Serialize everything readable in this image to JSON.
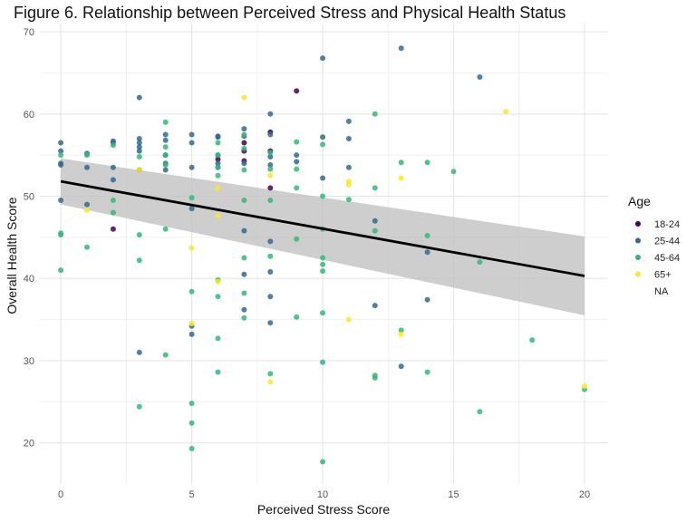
{
  "chart_data": {
    "type": "scatter",
    "title": "Figure 6. Relationship between Perceived Stress and Physical Health Status",
    "xlabel": "Perceived Stress Score",
    "ylabel": "Overall Health Score",
    "xlim": [
      -0.8,
      20.9
    ],
    "ylim": [
      15,
      71
    ],
    "xticks": [
      0,
      5,
      10,
      15,
      20
    ],
    "yticks": [
      20,
      30,
      40,
      50,
      60,
      70
    ],
    "grid": true,
    "legend": {
      "title": "Age",
      "position": "right",
      "entries": [
        {
          "label": "18-24",
          "color": "#440154"
        },
        {
          "label": "25-44",
          "color": "#31688e"
        },
        {
          "label": "45-64",
          "color": "#35b779"
        },
        {
          "label": "65+",
          "color": "#fde725"
        },
        {
          "label": "NA",
          "color": "none"
        }
      ]
    },
    "trend": {
      "type": "linear",
      "x": [
        0,
        20
      ],
      "y": [
        51.8,
        40.3
      ],
      "ci_lower": [
        49.0,
        35.5
      ],
      "ci_upper": [
        54.6,
        45.1
      ],
      "line_color": "#000000",
      "band_color": "#bdbdbd"
    },
    "series": [
      {
        "name": "18-24",
        "color": "#440154",
        "points": [
          [
            2,
            46.0
          ],
          [
            6,
            54.5
          ],
          [
            7,
            54.3
          ],
          [
            7,
            55.5
          ],
          [
            7,
            56.5
          ],
          [
            8,
            51.0
          ],
          [
            8,
            55.5
          ],
          [
            8,
            57.8
          ],
          [
            9,
            62.8
          ]
        ]
      },
      {
        "name": "25-44",
        "color": "#31688e",
        "points": [
          [
            0,
            49.5
          ],
          [
            0,
            53.8
          ],
          [
            0,
            54.0
          ],
          [
            0,
            55.5
          ],
          [
            0,
            56.5
          ],
          [
            1,
            49.0
          ],
          [
            1,
            53.5
          ],
          [
            1,
            55.2
          ],
          [
            2,
            52.0
          ],
          [
            2,
            53.5
          ],
          [
            2,
            56.5
          ],
          [
            2,
            56.7
          ],
          [
            3,
            31.0
          ],
          [
            3,
            53.2
          ],
          [
            3,
            55.5
          ],
          [
            3,
            56.0
          ],
          [
            3,
            56.5
          ],
          [
            3,
            57.0
          ],
          [
            3,
            62.0
          ],
          [
            4,
            53.2
          ],
          [
            4,
            54.0
          ],
          [
            4,
            55.0
          ],
          [
            4,
            56.8
          ],
          [
            4,
            57.5
          ],
          [
            5,
            33.2
          ],
          [
            5,
            34.2
          ],
          [
            5,
            48.5
          ],
          [
            5,
            53.5
          ],
          [
            5,
            56.5
          ],
          [
            5,
            57.5
          ],
          [
            6,
            53.5
          ],
          [
            6,
            54.0
          ],
          [
            6,
            55.0
          ],
          [
            6,
            57.2
          ],
          [
            6,
            57.3
          ],
          [
            7,
            36.2
          ],
          [
            7,
            40.5
          ],
          [
            7,
            45.8
          ],
          [
            7,
            54.0
          ],
          [
            7,
            57.3
          ],
          [
            7,
            58.2
          ],
          [
            8,
            34.6
          ],
          [
            8,
            37.8
          ],
          [
            8,
            40.8
          ],
          [
            8,
            44.5
          ],
          [
            8,
            53.8
          ],
          [
            8,
            54.8
          ],
          [
            8,
            57.5
          ],
          [
            8,
            60.0
          ],
          [
            9,
            54.2
          ],
          [
            9,
            55.0
          ],
          [
            10,
            52.2
          ],
          [
            10,
            57.2
          ],
          [
            10,
            66.8
          ],
          [
            11,
            53.5
          ],
          [
            11,
            57.0
          ],
          [
            11,
            59.1
          ],
          [
            12,
            36.7
          ],
          [
            12,
            47.0
          ],
          [
            13,
            29.3
          ],
          [
            13,
            68.0
          ],
          [
            14,
            37.4
          ],
          [
            14,
            43.2
          ],
          [
            16,
            64.5
          ]
        ]
      },
      {
        "name": "45-64",
        "color": "#35b779",
        "points": [
          [
            0,
            41.0
          ],
          [
            0,
            45.3
          ],
          [
            0,
            45.5
          ],
          [
            0,
            55.0
          ],
          [
            1,
            43.8
          ],
          [
            1,
            55.0
          ],
          [
            2,
            48.0
          ],
          [
            2,
            49.5
          ],
          [
            2,
            56.2
          ],
          [
            3,
            24.4
          ],
          [
            3,
            42.2
          ],
          [
            3,
            45.3
          ],
          [
            3,
            54.8
          ],
          [
            4,
            30.7
          ],
          [
            4,
            46.0
          ],
          [
            4,
            53.8
          ],
          [
            4,
            55.0
          ],
          [
            4,
            56.0
          ],
          [
            4,
            59.0
          ],
          [
            5,
            19.3
          ],
          [
            5,
            22.4
          ],
          [
            5,
            24.8
          ],
          [
            5,
            38.4
          ],
          [
            5,
            49.8
          ],
          [
            6,
            28.6
          ],
          [
            6,
            32.7
          ],
          [
            6,
            37.8
          ],
          [
            6,
            39.8
          ],
          [
            6,
            52.5
          ],
          [
            6,
            53.5
          ],
          [
            6,
            55.0
          ],
          [
            6,
            56.5
          ],
          [
            7,
            35.2
          ],
          [
            7,
            38.2
          ],
          [
            7,
            42.5
          ],
          [
            7,
            49.5
          ],
          [
            7,
            53.2
          ],
          [
            7,
            55.8
          ],
          [
            7,
            57.5
          ],
          [
            8,
            28.4
          ],
          [
            8,
            42.7
          ],
          [
            8,
            49.5
          ],
          [
            8,
            53.3
          ],
          [
            8,
            55.3
          ],
          [
            9,
            35.3
          ],
          [
            9,
            44.8
          ],
          [
            9,
            51.0
          ],
          [
            9,
            53.3
          ],
          [
            9,
            56.6
          ],
          [
            10,
            17.7
          ],
          [
            10,
            29.8
          ],
          [
            10,
            35.8
          ],
          [
            10,
            40.9
          ],
          [
            10,
            41.7
          ],
          [
            10,
            42.5
          ],
          [
            10,
            46.0
          ],
          [
            10,
            50.0
          ],
          [
            10,
            56.3
          ],
          [
            11,
            49.6
          ],
          [
            12,
            27.9
          ],
          [
            12,
            28.2
          ],
          [
            12,
            45.8
          ],
          [
            12,
            51.0
          ],
          [
            12,
            60.0
          ],
          [
            13,
            33.7
          ],
          [
            13,
            54.1
          ],
          [
            14,
            28.6
          ],
          [
            14,
            45.2
          ],
          [
            14,
            54.1
          ],
          [
            15,
            53.0
          ],
          [
            16,
            23.8
          ],
          [
            16,
            42.0
          ],
          [
            18,
            32.5
          ],
          [
            20,
            26.5
          ]
        ]
      },
      {
        "name": "65+",
        "color": "#fde725",
        "points": [
          [
            1,
            48.3
          ],
          [
            3,
            53.2
          ],
          [
            5,
            34.5
          ],
          [
            5,
            43.7
          ],
          [
            6,
            39.6
          ],
          [
            6,
            47.6
          ],
          [
            6,
            51.0
          ],
          [
            7,
            62.0
          ],
          [
            8,
            27.4
          ],
          [
            8,
            52.5
          ],
          [
            11,
            35.0
          ],
          [
            11,
            51.4
          ],
          [
            11,
            51.8
          ],
          [
            13,
            33.2
          ],
          [
            13,
            52.2
          ],
          [
            17,
            60.3
          ],
          [
            20,
            26.9
          ]
        ]
      }
    ]
  }
}
